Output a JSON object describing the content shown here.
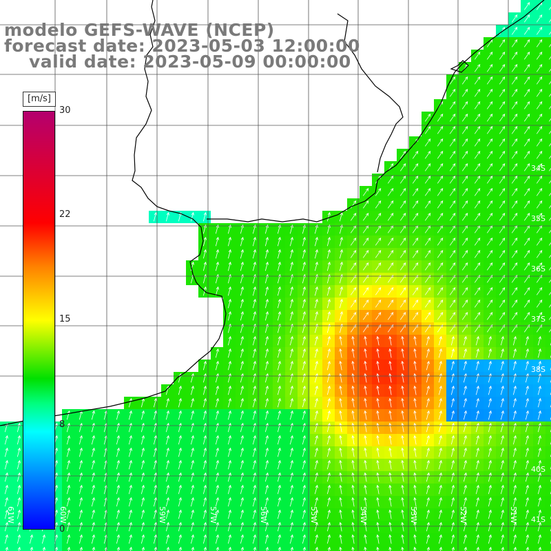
{
  "title": {
    "line1": "modelo GEFS-WAVE (NCEP)",
    "line2": "forecast date: 2023-05-03 12:00:00",
    "line3": "valid date: 2023-05-09 00:00:00"
  },
  "legend": {
    "unit": "[m/s]",
    "ticks": [
      {
        "label": "30",
        "value": 30
      },
      {
        "label": "22",
        "value": 22
      },
      {
        "label": "15",
        "value": 15
      },
      {
        "label": "8",
        "value": 8
      },
      {
        "label": "0",
        "value": 0
      }
    ]
  },
  "map": {
    "lat_labels": [
      "34S",
      "35S",
      "36S",
      "37S",
      "38S",
      "40S",
      "41S"
    ],
    "lon_labels": [
      "61W",
      "60W",
      "59W",
      "57W",
      "56W",
      "55W",
      "54W",
      "53W",
      "52W",
      "51W"
    ]
  },
  "colors": {
    "title_text": "#7a7a7a",
    "coastline": "#000000",
    "grid": "#555555",
    "arrows": "#ffffff"
  }
}
